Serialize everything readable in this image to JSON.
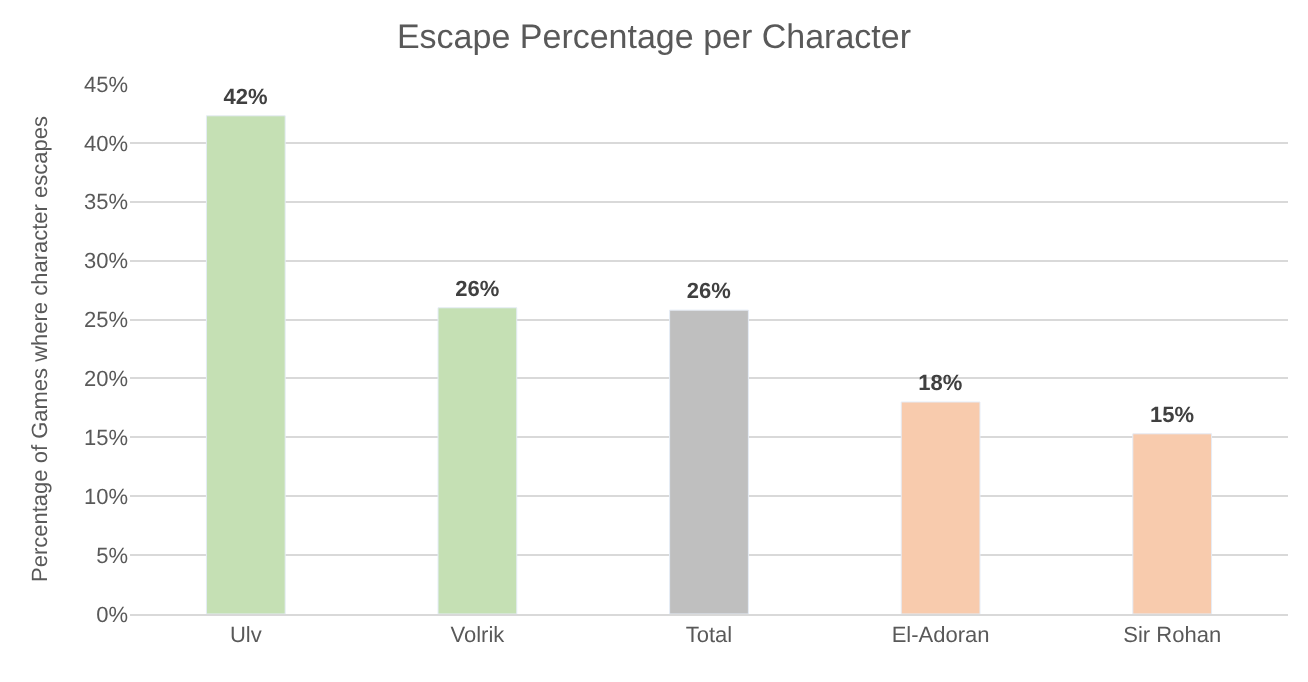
{
  "chart_data": {
    "type": "bar",
    "title": "Escape Percentage per Character",
    "ylabel": "Percentage of Games where character escapes",
    "categories": [
      "Ulv",
      "Volrik",
      "Total",
      "El-Adoran",
      "Sir Rohan"
    ],
    "values": [
      42.3,
      26,
      25.8,
      18,
      15.3
    ],
    "colors": [
      "#c5e0b4",
      "#c5e0b4",
      "#bfbfbf",
      "#f8cbad",
      "#f8cbad"
    ],
    "value_labels": [
      "42%",
      "26%",
      "26%",
      "18%",
      "15%"
    ],
    "ylim": [
      0,
      45
    ],
    "yticks": [
      {
        "value": 0,
        "label": "0%"
      },
      {
        "value": 5,
        "label": "5%"
      },
      {
        "value": 10,
        "label": "10%"
      },
      {
        "value": 15,
        "label": "15%"
      },
      {
        "value": 20,
        "label": "20%"
      },
      {
        "value": 25,
        "label": "25%"
      },
      {
        "value": 30,
        "label": "30%"
      },
      {
        "value": 35,
        "label": "35%"
      },
      {
        "value": 40,
        "label": "40%"
      },
      {
        "value": 45,
        "label": "45%"
      }
    ],
    "grid": "y",
    "legend": false
  }
}
